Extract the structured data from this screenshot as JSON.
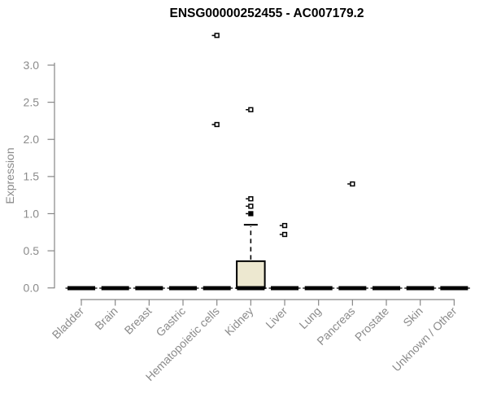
{
  "chart_data": {
    "type": "boxplot",
    "title": "ENSG00000252455 - AC007179.2",
    "ylabel": "Expression",
    "xlabel": "",
    "ylim": [
      0,
      3.45
    ],
    "yticks": [
      0.0,
      0.5,
      1.0,
      1.5,
      2.0,
      2.5,
      3.0
    ],
    "grid": false,
    "legend": "none",
    "categories": [
      "Bladder",
      "Brain",
      "Breast",
      "Gastric",
      "Hematopoietic cells",
      "Kidney",
      "Liver",
      "Lung",
      "Pancreas",
      "Prostate",
      "Skin",
      "Unknown / Other"
    ],
    "boxes": [
      {
        "category": "Bladder",
        "q1": 0,
        "median": 0,
        "q3": 0,
        "whisker_low": 0,
        "whisker_high": 0,
        "outliers": []
      },
      {
        "category": "Brain",
        "q1": 0,
        "median": 0,
        "q3": 0,
        "whisker_low": 0,
        "whisker_high": 0,
        "outliers": []
      },
      {
        "category": "Breast",
        "q1": 0,
        "median": 0,
        "q3": 0,
        "whisker_low": 0,
        "whisker_high": 0,
        "outliers": []
      },
      {
        "category": "Gastric",
        "q1": 0,
        "median": 0,
        "q3": 0,
        "whisker_low": 0,
        "whisker_high": 0,
        "outliers": []
      },
      {
        "category": "Hematopoietic cells",
        "q1": 0,
        "median": 0,
        "q3": 0,
        "whisker_low": 0,
        "whisker_high": 0,
        "outliers": [
          2.2,
          3.4
        ]
      },
      {
        "category": "Kidney",
        "q1": 0,
        "median": 0,
        "q3": 0.36,
        "whisker_low": 0,
        "whisker_high": 0.85,
        "outliers": [
          1.0,
          1.0,
          1.1,
          1.2,
          2.4
        ]
      },
      {
        "category": "Liver",
        "q1": 0,
        "median": 0,
        "q3": 0,
        "whisker_low": 0,
        "whisker_high": 0,
        "outliers": [
          0.72,
          0.84
        ]
      },
      {
        "category": "Lung",
        "q1": 0,
        "median": 0,
        "q3": 0,
        "whisker_low": 0,
        "whisker_high": 0,
        "outliers": []
      },
      {
        "category": "Pancreas",
        "q1": 0,
        "median": 0,
        "q3": 0,
        "whisker_low": 0,
        "whisker_high": 0,
        "outliers": [
          1.4
        ]
      },
      {
        "category": "Prostate",
        "q1": 0,
        "median": 0,
        "q3": 0,
        "whisker_low": 0,
        "whisker_high": 0,
        "outliers": []
      },
      {
        "category": "Skin",
        "q1": 0,
        "median": 0,
        "q3": 0,
        "whisker_low": 0,
        "whisker_high": 0,
        "outliers": []
      },
      {
        "category": "Unknown / Other",
        "q1": 0,
        "median": 0,
        "q3": 0,
        "whisker_low": 0,
        "whisker_high": 0,
        "outliers": []
      }
    ]
  },
  "colors": {
    "background": "#ffffff",
    "title": "#000000",
    "axis": "#878787",
    "tick_label": "#8b8b8b",
    "box_fill": "#ede8d0",
    "box_border": "#000000",
    "marker": "#000000"
  }
}
